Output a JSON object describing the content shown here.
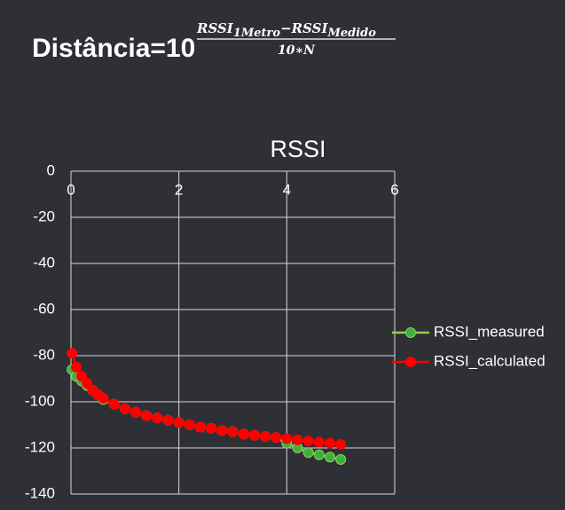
{
  "formula": {
    "base": "Distância=10",
    "numerator": [
      "RSSI",
      "1Metro",
      "−",
      "RSSI",
      "Medido"
    ],
    "denominator": "10∗N"
  },
  "chart_data": {
    "type": "scatter-line",
    "title": "RSSI",
    "x": [
      0.02,
      0.1,
      0.2,
      0.3,
      0.4,
      0.5,
      0.6,
      0.8,
      1.0,
      1.2,
      1.4,
      1.6,
      1.8,
      2.0,
      2.2,
      2.4,
      2.6,
      2.8,
      3.0,
      3.2,
      3.4,
      3.6,
      3.8,
      4.0,
      4.2,
      4.4,
      4.6,
      4.8,
      5.0
    ],
    "series": [
      {
        "name": "RSSI_measured",
        "color": "#3cb043",
        "line_color": "#92d050",
        "values": [
          -86,
          -89,
          -91,
          -93,
          -95,
          -97,
          -99,
          -101,
          -103,
          -104.5,
          -106,
          -107,
          -108,
          -109,
          -110,
          -111,
          -111.5,
          -112.5,
          -113,
          -114,
          -114.5,
          -115,
          -115.5,
          -118,
          -120,
          -122,
          -123,
          -124,
          -125
        ]
      },
      {
        "name": "RSSI_calculated",
        "color": "#ff0000",
        "line_color": "#ff0000",
        "values": [
          -79,
          -85,
          -89,
          -92,
          -95,
          -97,
          -98.5,
          -101,
          -103,
          -104.5,
          -106,
          -107,
          -108,
          -109,
          -110,
          -111,
          -111.5,
          -112.5,
          -113,
          -114,
          -114.5,
          -115,
          -115.5,
          -116,
          -116.5,
          -117,
          -117.5,
          -118,
          -118.5
        ]
      }
    ],
    "xlim": [
      0,
      6
    ],
    "xticks": [
      0,
      2,
      4,
      6
    ],
    "ylim": [
      -140,
      0
    ],
    "yticks": [
      0,
      -20,
      -40,
      -60,
      -80,
      -100,
      -120,
      -140
    ],
    "grid": true,
    "legend": "right"
  }
}
